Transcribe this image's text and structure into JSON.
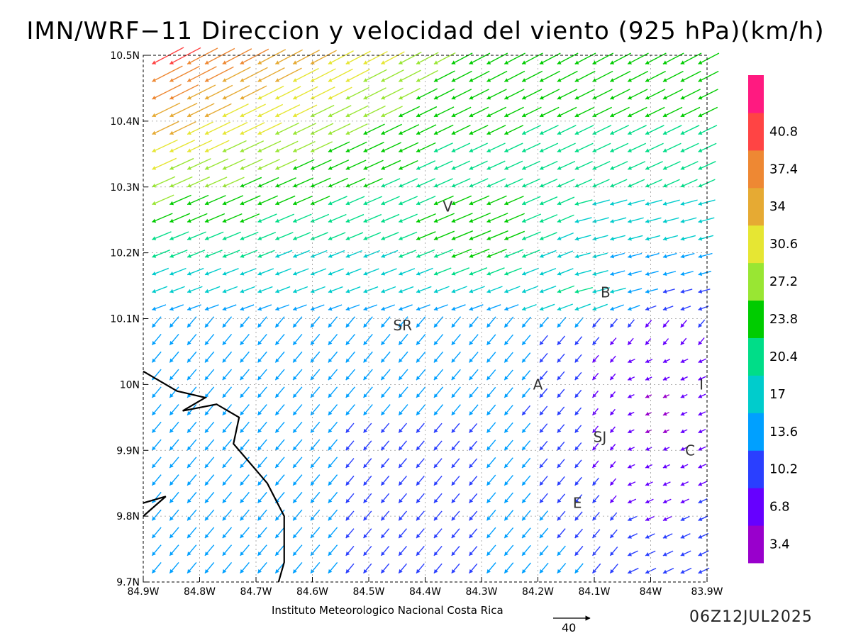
{
  "title": "IMN/WRF−11 Direccion y velocidad del viento (925 hPa)(km/h)",
  "credit": "Instituto Meteorologico Nacional Costa Rica",
  "date": "06Z12JUL2025",
  "reference_vector": {
    "label": "40",
    "value": 40,
    "units": "km/h"
  },
  "map": {
    "lon_range": [
      -84.9,
      -83.9
    ],
    "lat_range": [
      9.7,
      10.5
    ],
    "x_ticks": [
      "84.9W",
      "84.8W",
      "84.7W",
      "84.6W",
      "84.5W",
      "84.4W",
      "84.3W",
      "84.2W",
      "84.1W",
      "84W",
      "83.9W"
    ],
    "y_ticks": [
      "9.7N",
      "9.8N",
      "9.9N",
      "10N",
      "10.1N",
      "10.2N",
      "10.3N",
      "10.4N",
      "10.5N"
    ],
    "grid": true,
    "city_labels": [
      {
        "text": "V",
        "lon": -84.36,
        "lat": 10.27
      },
      {
        "text": "B",
        "lon": -84.08,
        "lat": 10.14
      },
      {
        "text": "SR",
        "lon": -84.44,
        "lat": 10.09
      },
      {
        "text": "A",
        "lon": -84.2,
        "lat": 10.0
      },
      {
        "text": "I",
        "lon": -83.91,
        "lat": 10.0
      },
      {
        "text": "SJ",
        "lon": -84.09,
        "lat": 9.92
      },
      {
        "text": "C",
        "lon": -83.93,
        "lat": 9.9
      },
      {
        "text": "E",
        "lon": -84.13,
        "lat": 9.82
      }
    ],
    "coastline": [
      [
        -84.9,
        10.02
      ],
      [
        -84.84,
        9.99
      ],
      [
        -84.79,
        9.98
      ],
      [
        -84.83,
        9.96
      ],
      [
        -84.77,
        9.97
      ],
      [
        -84.73,
        9.95
      ],
      [
        -84.74,
        9.91
      ],
      [
        -84.71,
        9.88
      ],
      [
        -84.68,
        9.85
      ],
      [
        -84.65,
        9.8
      ],
      [
        -84.65,
        9.73
      ],
      [
        -84.66,
        9.7
      ]
    ],
    "coastline2": [
      [
        -84.9,
        9.82
      ],
      [
        -84.86,
        9.83
      ],
      [
        -84.9,
        9.8
      ]
    ]
  },
  "legend": {
    "tick_labels": [
      "3.4",
      "6.8",
      "10.2",
      "13.6",
      "17",
      "20.4",
      "23.8",
      "27.2",
      "30.6",
      "34",
      "37.4",
      "40.8"
    ],
    "colors": [
      "#9900cc",
      "#6600ff",
      "#2a3fff",
      "#00a0ff",
      "#00cccc",
      "#00dd88",
      "#00cc00",
      "#99e633",
      "#e6e633",
      "#e6aa33",
      "#ee8833",
      "#ff4444",
      "#ff1a80"
    ]
  },
  "wind_field_summary": {
    "prevailing_direction": "NE",
    "max_speed_region": "northwest corner",
    "approx_max_speed_kmh": 42,
    "approx_min_speed_kmh": 2
  }
}
